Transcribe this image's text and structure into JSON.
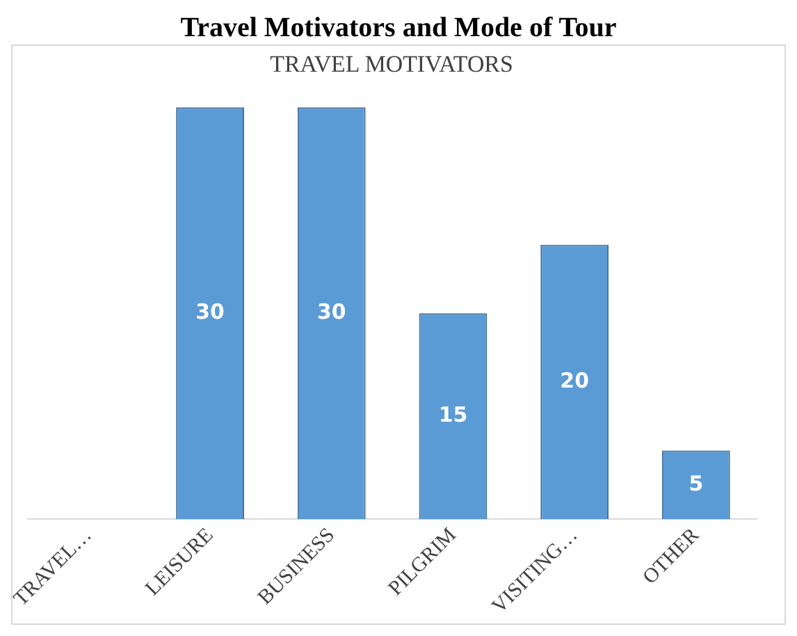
{
  "chart_data": {
    "type": "bar",
    "title": "Travel Motivators and Mode of Tour",
    "subtitle": "TRAVEL MOTIVATORS",
    "categories": [
      "TRAVEL…",
      "LEISURE",
      "BUSINESS",
      "PILGRIM",
      "VISITING…",
      "OTHER"
    ],
    "values": [
      null,
      30,
      30,
      15,
      20,
      5
    ],
    "color": "#5b9bd5",
    "data_labels": true,
    "tick_labels": "x"
  }
}
